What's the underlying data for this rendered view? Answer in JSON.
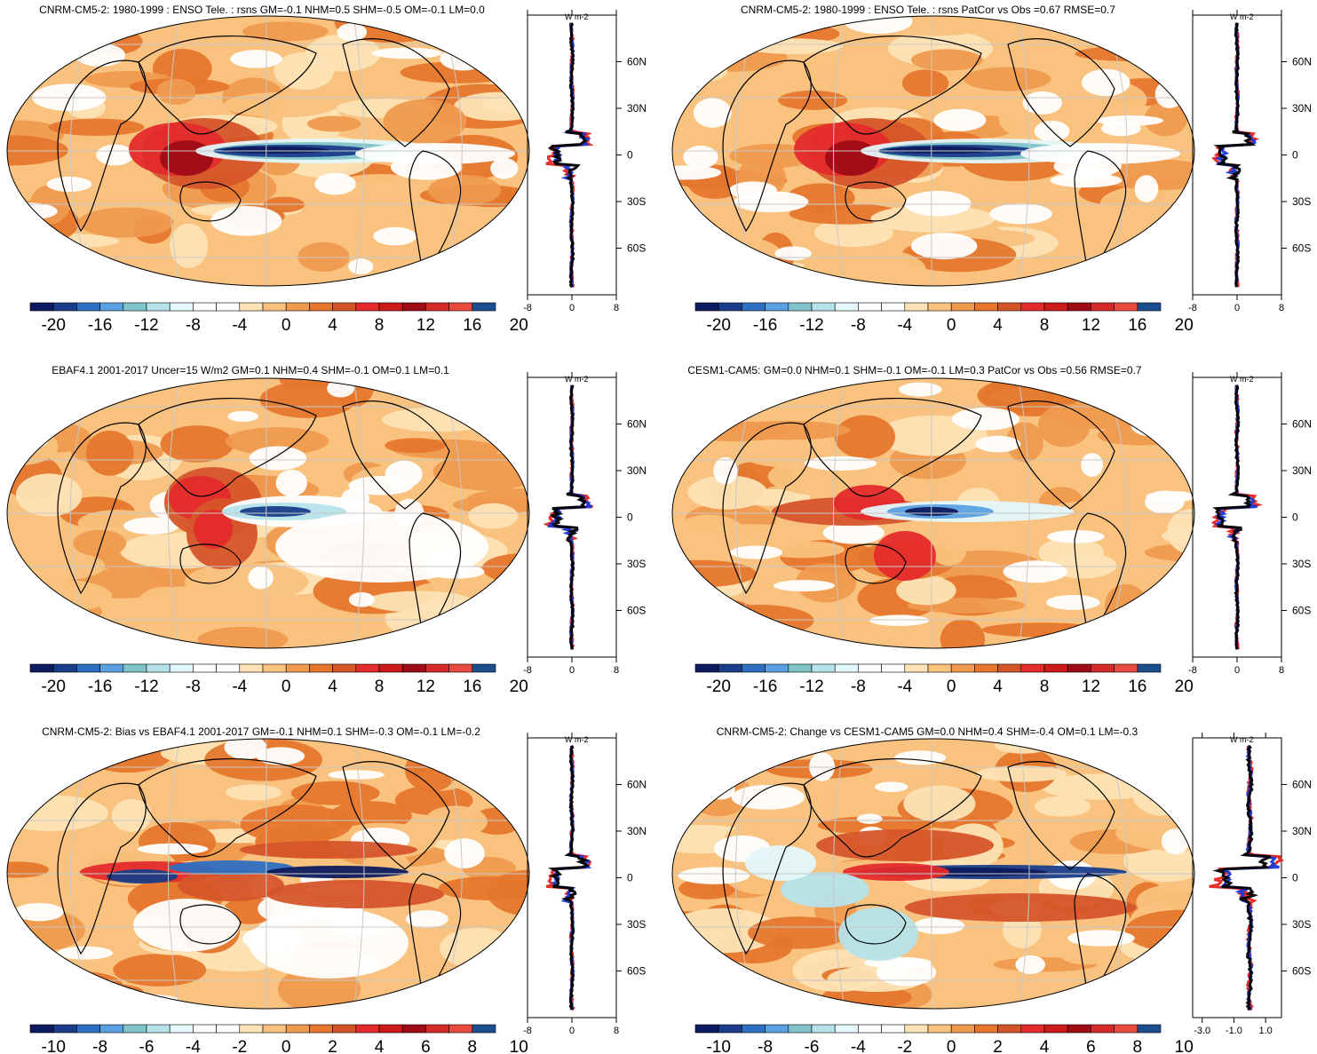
{
  "colorbar_colors": [
    "#0d1a5e",
    "#1a3d8a",
    "#2e6fc1",
    "#5aa0e0",
    "#7fc4c8",
    "#b6e3ea",
    "#e4f7fb",
    "#ffffff",
    "#ffffff",
    "#fde3b5",
    "#f9c27e",
    "#ef9a4f",
    "#e5772d",
    "#d5552a",
    "#e42b2b",
    "#cc1a1a",
    "#9f0c16",
    "#d42a2a",
    "#e84a40",
    "#1d4e8c"
  ],
  "profile_colors": {
    "red": "#e8231e",
    "blue": "#1838d6",
    "black": "#000000"
  },
  "chart_data": [
    {
      "type": "heatmap",
      "title": "CNRM-CM5-2: 1980-1999 : ENSO Tele. : rsns GM=-0.1 NHM=0.5 SHM=-0.5 OM=-0.1 LM=0.0",
      "colorbar": {
        "ticks": [
          "-20",
          "-16",
          "-12",
          "-8",
          "-4",
          "0",
          "4",
          "8",
          "12",
          "16",
          "20"
        ]
      },
      "profile": {
        "unit": "W m-2",
        "xticks": [
          "-8",
          "0",
          "8"
        ],
        "xlim": [
          -8,
          8
        ],
        "lat_labels": [
          "60N",
          "30N",
          "0",
          "30S",
          "60S"
        ],
        "lat_values": [
          60,
          30,
          0,
          -30,
          -60
        ],
        "ylim": [
          -90,
          90
        ]
      }
    },
    {
      "type": "heatmap",
      "title": "CNRM-CM5-2: 1980-1999 : ENSO Tele. : rsns PatCor vs Obs =0.67 RMSE=0.7",
      "colorbar": {
        "ticks": [
          "-20",
          "-16",
          "-12",
          "-8",
          "-4",
          "0",
          "4",
          "8",
          "12",
          "16",
          "20"
        ]
      },
      "profile": {
        "unit": "W m-2",
        "xticks": [
          "-8",
          "0",
          "8"
        ],
        "xlim": [
          -8,
          8
        ],
        "lat_labels": [
          "60N",
          "30N",
          "0",
          "30S",
          "60S"
        ],
        "lat_values": [
          60,
          30,
          0,
          -30,
          -60
        ],
        "ylim": [
          -90,
          90
        ]
      }
    },
    {
      "type": "heatmap",
      "title": "EBAF4.1 2001-2017 Uncer=15 W/m2 GM=0.1 NHM=0.4 SHM=-0.1 OM=0.1 LM=0.1",
      "colorbar": {
        "ticks": [
          "-20",
          "-16",
          "-12",
          "-8",
          "-4",
          "0",
          "4",
          "8",
          "12",
          "16",
          "20"
        ]
      },
      "profile": {
        "unit": "W m-2",
        "xticks": [
          "-8",
          "0",
          "8"
        ],
        "xlim": [
          -8,
          8
        ],
        "lat_labels": [
          "60N",
          "30N",
          "0",
          "30S",
          "60S"
        ],
        "lat_values": [
          60,
          30,
          0,
          -30,
          -60
        ],
        "ylim": [
          -90,
          90
        ]
      }
    },
    {
      "type": "heatmap",
      "title": "CESM1-CAM5: GM=0.0 NHM=0.1 SHM=-0.1 OM=-0.1 LM=0.3 PatCor vs Obs =0.56 RMSE=0.7",
      "colorbar": {
        "ticks": [
          "-20",
          "-16",
          "-12",
          "-8",
          "-4",
          "0",
          "4",
          "8",
          "12",
          "16",
          "20"
        ]
      },
      "profile": {
        "unit": "W m-2",
        "xticks": [
          "-8",
          "0",
          "8"
        ],
        "xlim": [
          -8,
          8
        ],
        "lat_labels": [
          "60N",
          "30N",
          "0",
          "30S",
          "60S"
        ],
        "lat_values": [
          60,
          30,
          0,
          -30,
          -60
        ],
        "ylim": [
          -90,
          90
        ]
      }
    },
    {
      "type": "heatmap",
      "title": "CNRM-CM5-2: Bias vs EBAF4.1 2001-2017 GM=-0.1 NHM=0.1 SHM=-0.3 OM=-0.1 LM=-0.2",
      "colorbar": {
        "ticks": [
          "-10",
          "-8",
          "-6",
          "-4",
          "-2",
          "0",
          "2",
          "4",
          "6",
          "8",
          "10"
        ]
      },
      "profile": {
        "unit": "W m-2",
        "xticks": [
          "-8",
          "0",
          "8"
        ],
        "xlim": [
          -8,
          8
        ],
        "lat_labels": [
          "60N",
          "30N",
          "0",
          "30S",
          "60S"
        ],
        "lat_values": [
          60,
          30,
          0,
          -30,
          -60
        ],
        "ylim": [
          -90,
          90
        ]
      }
    },
    {
      "type": "heatmap",
      "title": "CNRM-CM5-2: Change vs CESM1-CAM5 GM=0.0 NHM=0.4 SHM=-0.4 OM=0.1 LM=-0.3",
      "colorbar": {
        "ticks": [
          "-10",
          "-8",
          "-6",
          "-4",
          "-2",
          "0",
          "2",
          "4",
          "6",
          "8",
          "10"
        ]
      },
      "profile": {
        "unit": "W m-2",
        "xticks": [
          "-3.0",
          "-1.0",
          "1.0"
        ],
        "xlim": [
          -3.6,
          2.0
        ],
        "lat_labels": [
          "60N",
          "30N",
          "0",
          "30S",
          "60S"
        ],
        "lat_values": [
          60,
          30,
          0,
          -30,
          -60
        ],
        "ylim": [
          -90,
          90
        ]
      }
    }
  ]
}
